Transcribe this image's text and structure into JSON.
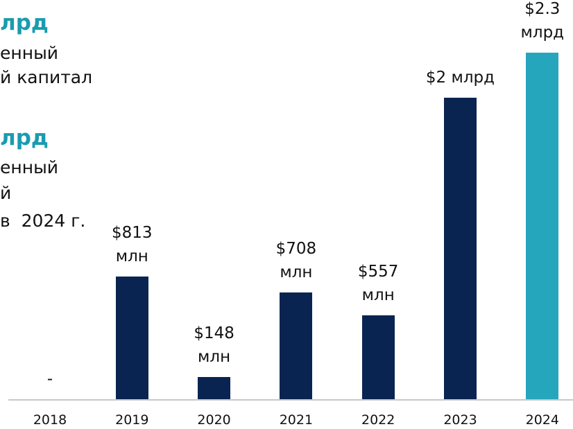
{
  "chart_data": {
    "type": "bar",
    "annotations": [
      "лрд",
      "енный",
      "й капитал",
      "лрд",
      "енный",
      "й",
      "в  2024 г."
    ],
    "categories": [
      "2018",
      "2019",
      "2020",
      "2021",
      "2022",
      "2023",
      "2024"
    ],
    "values": [
      0,
      813,
      148,
      708,
      557,
      2000,
      2300
    ],
    "value_labels": [
      "-",
      "$813 млн",
      "$148 млн",
      "$708 млн",
      "$557 млн",
      "$2 млрд",
      "$2.3 млрд"
    ],
    "colors": [
      "#0a2451",
      "#0a2451",
      "#0a2451",
      "#0a2451",
      "#0a2451",
      "#0a2451",
      "#26a6bd"
    ],
    "ylim": [
      0,
      2300
    ]
  }
}
